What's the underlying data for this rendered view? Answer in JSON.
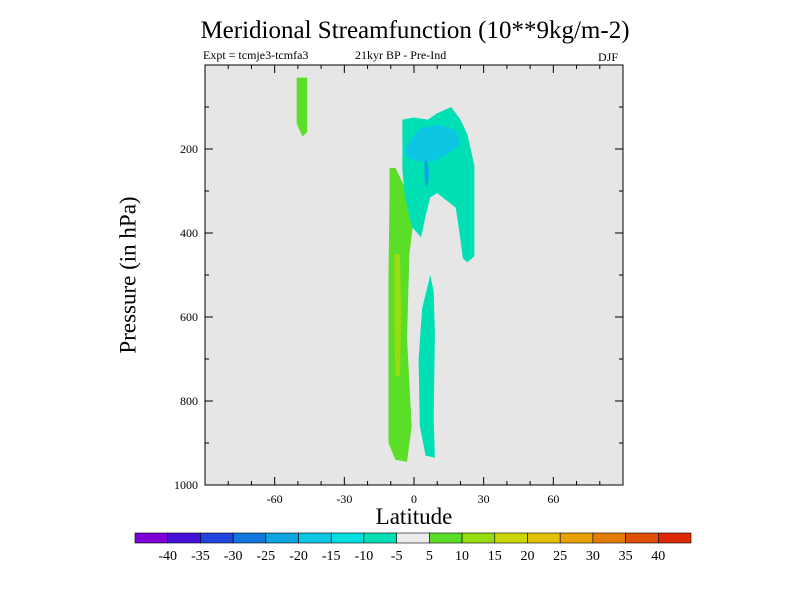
{
  "title": "Meridional Streamfunction (10**9kg/m-2)",
  "experiment": "Expt = tcmje3-tcmfa3",
  "period": "21kyr BP - Pre-Ind",
  "season": "DJF",
  "colors": {
    "background": "#e6e6e6",
    "levels": [
      "#7d00d8",
      "#4410d8",
      "#2244dc",
      "#1278e0",
      "#0ea4e0",
      "#0cc6e4",
      "#00dede",
      "#00e0b4",
      "#ececec",
      "#5ade28",
      "#96dc10",
      "#cad808",
      "#e4c004",
      "#e8a004",
      "#e47c04",
      "#e05004",
      "#dc2804"
    ]
  },
  "colorbar": {
    "labels": [
      "-40",
      "-35",
      "-30",
      "-25",
      "-20",
      "-15",
      "-10",
      "-5",
      "5",
      "10",
      "15",
      "20",
      "25",
      "30",
      "35",
      "40"
    ]
  },
  "chart_data": {
    "type": "heatmap",
    "title": "Meridional Streamfunction (10**9kg/m-2)",
    "xlabel": "Latitude",
    "ylabel": "Pressure (in hPa)",
    "xlim": [
      -90,
      90
    ],
    "ylim": [
      1000,
      0
    ],
    "x_ticks": [
      -60,
      -30,
      0,
      30,
      60
    ],
    "x_tick_labels": [
      "-60",
      "-30",
      "0",
      "30",
      "60"
    ],
    "y_ticks": [
      200,
      400,
      600,
      800,
      1000
    ],
    "y_tick_labels": [
      "200",
      "400",
      "600",
      "800",
      "1000"
    ],
    "grid": false,
    "levels": [
      -40,
      -35,
      -30,
      -25,
      -20,
      -15,
      -10,
      -5,
      5,
      10,
      15,
      20,
      25,
      30,
      35,
      40
    ],
    "regions": [
      {
        "level": "5 to 10",
        "color": "#5ade28",
        "points": [
          [
            -50.5,
            30
          ],
          [
            -46,
            30
          ],
          [
            -46,
            160
          ],
          [
            -48,
            170
          ],
          [
            -50.5,
            140
          ]
        ]
      },
      {
        "level": "5 to 10",
        "color": "#5ade28",
        "points": [
          [
            -10.5,
            245
          ],
          [
            -8,
            245
          ],
          [
            -4,
            290
          ],
          [
            0,
            360
          ],
          [
            -2,
            450
          ],
          [
            -3,
            650
          ],
          [
            -1,
            860
          ],
          [
            -3,
            945
          ],
          [
            -8,
            940
          ],
          [
            -11,
            900
          ],
          [
            -11,
            500
          ],
          [
            -10.5,
            300
          ]
        ]
      },
      {
        "level": "10 to 15",
        "color": "#96dc10",
        "points": [
          [
            -8.5,
            450
          ],
          [
            -6,
            450
          ],
          [
            -5.5,
            600
          ],
          [
            -6,
            740
          ],
          [
            -8,
            740
          ],
          [
            -8.5,
            600
          ]
        ]
      },
      {
        "level": "-10 to -5",
        "color": "#00e0b4",
        "points": [
          [
            -5,
            185
          ],
          [
            -5,
            130
          ],
          [
            0,
            125
          ],
          [
            6,
            130
          ],
          [
            10,
            115
          ],
          [
            16,
            100
          ],
          [
            20,
            130
          ],
          [
            23,
            165
          ],
          [
            26,
            240
          ],
          [
            26,
            455
          ],
          [
            23,
            470
          ],
          [
            21,
            460
          ],
          [
            20,
            415
          ],
          [
            18,
            340
          ],
          [
            10,
            305
          ],
          [
            7,
            315
          ],
          [
            5,
            360
          ],
          [
            3,
            410
          ],
          [
            -1,
            385
          ],
          [
            -4,
            310
          ],
          [
            -5,
            250
          ]
        ]
      },
      {
        "level": "-10 to -5",
        "color": "#00e0b4",
        "points": [
          [
            7,
            500
          ],
          [
            8.5,
            540
          ],
          [
            9,
            640
          ],
          [
            8.5,
            840
          ],
          [
            9,
            935
          ],
          [
            5,
            930
          ],
          [
            2.5,
            860
          ],
          [
            2,
            700
          ],
          [
            3.5,
            580
          ]
        ]
      },
      {
        "level": "-15 to -10",
        "color": "#0cc6e4",
        "points": [
          [
            -4,
            200
          ],
          [
            -1,
            175
          ],
          [
            3,
            150
          ],
          [
            10,
            142
          ],
          [
            18,
            155
          ],
          [
            20,
            190
          ],
          [
            15,
            210
          ],
          [
            8,
            230
          ],
          [
            2,
            230
          ],
          [
            -3,
            220
          ]
        ]
      },
      {
        "level": "-20 to -15",
        "color": "#0ea4e0",
        "points": [
          [
            4.5,
            230
          ],
          [
            5.5,
            225
          ],
          [
            6.5,
            255
          ],
          [
            6,
            285
          ],
          [
            5,
            290
          ],
          [
            4.5,
            260
          ]
        ]
      }
    ]
  }
}
